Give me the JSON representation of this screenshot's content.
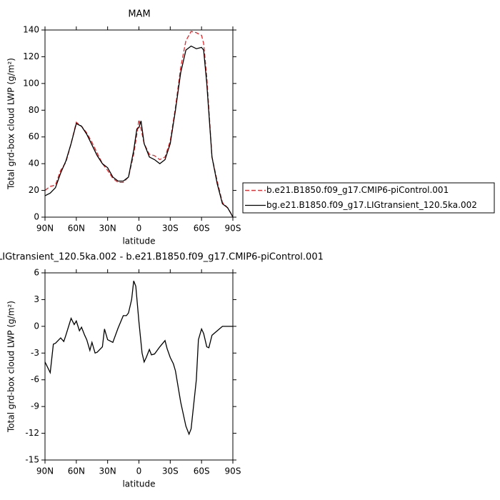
{
  "chart_data": [
    {
      "type": "line",
      "title": "MAM",
      "xlabel": "latitude",
      "ylabel": "Total grd-box cloud LWP (g/m²)",
      "x": [
        90,
        85,
        80,
        75,
        70,
        65,
        60,
        55,
        50,
        45,
        40,
        35,
        30,
        25,
        20,
        15,
        10,
        5,
        2,
        0,
        -2,
        -5,
        -10,
        -15,
        -20,
        -25,
        -30,
        -35,
        -40,
        -45,
        -50,
        -55,
        -60,
        -62,
        -65,
        -70,
        -75,
        -80,
        -85,
        -88,
        -90
      ],
      "series": [
        {
          "name": "b.e21.B1850.f09_g17.CMIP6-piControl.001",
          "color": "#e8262a",
          "line_style": "dashed",
          "values": [
            20,
            23,
            24,
            35,
            41,
            55,
            71,
            68,
            63,
            56,
            48,
            40,
            35,
            29,
            26,
            26,
            30,
            47,
            62,
            73,
            66,
            55,
            47,
            46,
            43,
            45,
            57,
            82,
            112,
            132,
            139,
            138,
            136,
            130,
            105,
            45,
            27,
            11,
            7,
            3,
            0
          ]
        },
        {
          "name": "bg.e21.B1850.f09_g17.LIGtransient_120.5ka.002",
          "color": "#000000",
          "line_style": "solid",
          "values": [
            16,
            18,
            22,
            33,
            42,
            55,
            70,
            68,
            62,
            54,
            46,
            40,
            37,
            30,
            27,
            27,
            30,
            50,
            66,
            67,
            72,
            55,
            45,
            43,
            40,
            43,
            55,
            80,
            108,
            125,
            128,
            126,
            127,
            125,
            100,
            45,
            25,
            10,
            7,
            3,
            0
          ]
        }
      ],
      "xlim": [
        90,
        -90
      ],
      "xticks": [
        {
          "value": 90,
          "label": "90N"
        },
        {
          "value": 60,
          "label": "60N"
        },
        {
          "value": 30,
          "label": "30N"
        },
        0,
        {
          "value": -30,
          "label": "30S"
        },
        {
          "value": -60,
          "label": "60S"
        },
        {
          "value": -90,
          "label": "90S"
        }
      ],
      "ylim": [
        0,
        140
      ],
      "yticks": [
        0,
        20,
        40,
        60,
        80,
        100,
        120,
        140
      ],
      "legend": "right"
    },
    {
      "type": "line",
      "title": "LIGtransient_120.5ka.002 - b.e21.B1850.f09_g17.CMIP6-piControl.001",
      "xlabel": "latitude",
      "ylabel": "Total grd-box cloud LWP (g/m²)",
      "x": [
        90,
        85,
        82,
        80,
        75,
        72,
        70,
        65,
        62,
        60,
        57,
        55,
        52,
        50,
        47,
        45,
        42,
        40,
        35,
        33,
        30,
        25,
        20,
        15,
        12,
        10,
        7,
        5,
        3,
        0,
        -3,
        -5,
        -7,
        -10,
        -12,
        -15,
        -20,
        -25,
        -27,
        -30,
        -33,
        -35,
        -40,
        -45,
        -48,
        -50,
        -55,
        -57,
        -60,
        -62,
        -65,
        -67,
        -70,
        -75,
        -80,
        -85,
        -90
      ],
      "values": [
        -4,
        -5.2,
        -2,
        -1.9,
        -1.3,
        -1.7,
        -1,
        0.9,
        0.2,
        0.6,
        -0.5,
        -0.1,
        -1,
        -1.5,
        -2.7,
        -1.8,
        -3,
        -2.9,
        -2.3,
        -0.3,
        -1.5,
        -1.8,
        -0.2,
        1.2,
        1.2,
        1.5,
        3,
        5.1,
        4.5,
        0.5,
        -3,
        -4,
        -3.5,
        -2.6,
        -3.2,
        -3.1,
        -2.3,
        -1.6,
        -2.5,
        -3.5,
        -4.2,
        -5,
        -8.5,
        -11.2,
        -12.1,
        -11.5,
        -6,
        -1.5,
        -0.3,
        -0.8,
        -2.3,
        -2.4,
        -1,
        -0.5,
        0,
        0,
        0
      ],
      "color": "#000000",
      "line_style": "solid",
      "xlim": [
        90,
        -90
      ],
      "xticks": [
        {
          "value": 90,
          "label": "90N"
        },
        {
          "value": 60,
          "label": "60N"
        },
        {
          "value": 30,
          "label": "30N"
        },
        0,
        {
          "value": -30,
          "label": "30S"
        },
        {
          "value": -60,
          "label": "60S"
        },
        {
          "value": -90,
          "label": "90S"
        }
      ],
      "ylim": [
        -15,
        6
      ],
      "yticks": [
        -15,
        -12,
        -9,
        -6,
        -3,
        0,
        3,
        6
      ]
    }
  ]
}
